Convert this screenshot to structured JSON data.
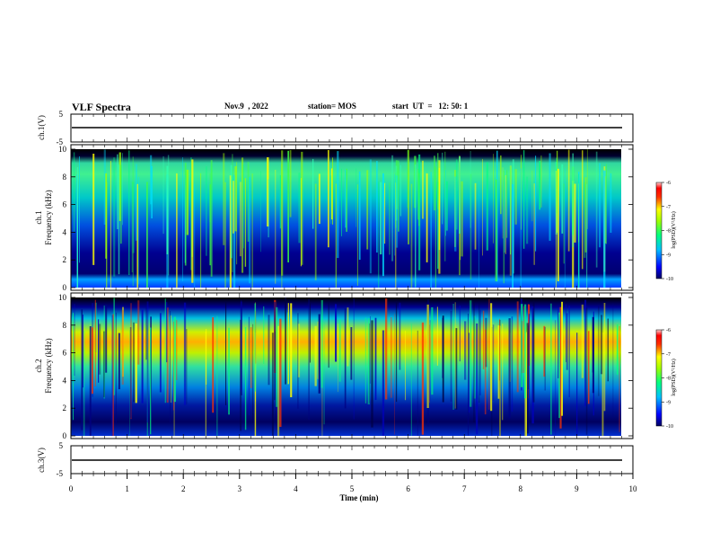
{
  "header": {
    "title": "VLF Spectra",
    "date": "Nov.9  , 2022",
    "station": "station= MOS",
    "start_ut": "start  UT  =   12: 50: 1"
  },
  "chart_data": [
    {
      "type": "line",
      "ylabel": "ch.1(V)",
      "yticks": [
        "5",
        "-5"
      ],
      "ylim": [
        -5,
        5
      ],
      "trace_value": 0
    },
    {
      "type": "heatmap",
      "ylabel_1": "ch.1",
      "ylabel_2": "Frequency (kHz)",
      "ylim": [
        0,
        10
      ],
      "yticks": [
        "0",
        "2",
        "4",
        "6",
        "8",
        "10"
      ],
      "colorbar": {
        "label": "log(PSD)(V²/Hz)",
        "ticks": [
          "-6",
          "-7",
          "-8",
          "-9",
          "-10"
        ],
        "range": [
          -10,
          -6
        ]
      }
    },
    {
      "type": "heatmap",
      "ylabel_1": "ch.2",
      "ylabel_2": "Frequency (kHz)",
      "ylim": [
        0,
        10
      ],
      "yticks": [
        "0",
        "2",
        "4",
        "6",
        "8",
        "10"
      ],
      "colorbar": {
        "label": "log(PSD)(V²/Hz)",
        "ticks": [
          "-6",
          "-7",
          "-8",
          "-9",
          "-10"
        ],
        "range": [
          -10,
          -6
        ]
      }
    },
    {
      "type": "line",
      "ylabel": "ch.3(V)",
      "yticks": [
        "5",
        "-5"
      ],
      "ylim": [
        -5,
        5
      ],
      "trace_value": 0,
      "xlabel": "Time  (min)",
      "xticks": [
        "0",
        "1",
        "2",
        "3",
        "4",
        "5",
        "6",
        "7",
        "8",
        "9",
        "10"
      ],
      "xlim": [
        0,
        10
      ]
    }
  ]
}
